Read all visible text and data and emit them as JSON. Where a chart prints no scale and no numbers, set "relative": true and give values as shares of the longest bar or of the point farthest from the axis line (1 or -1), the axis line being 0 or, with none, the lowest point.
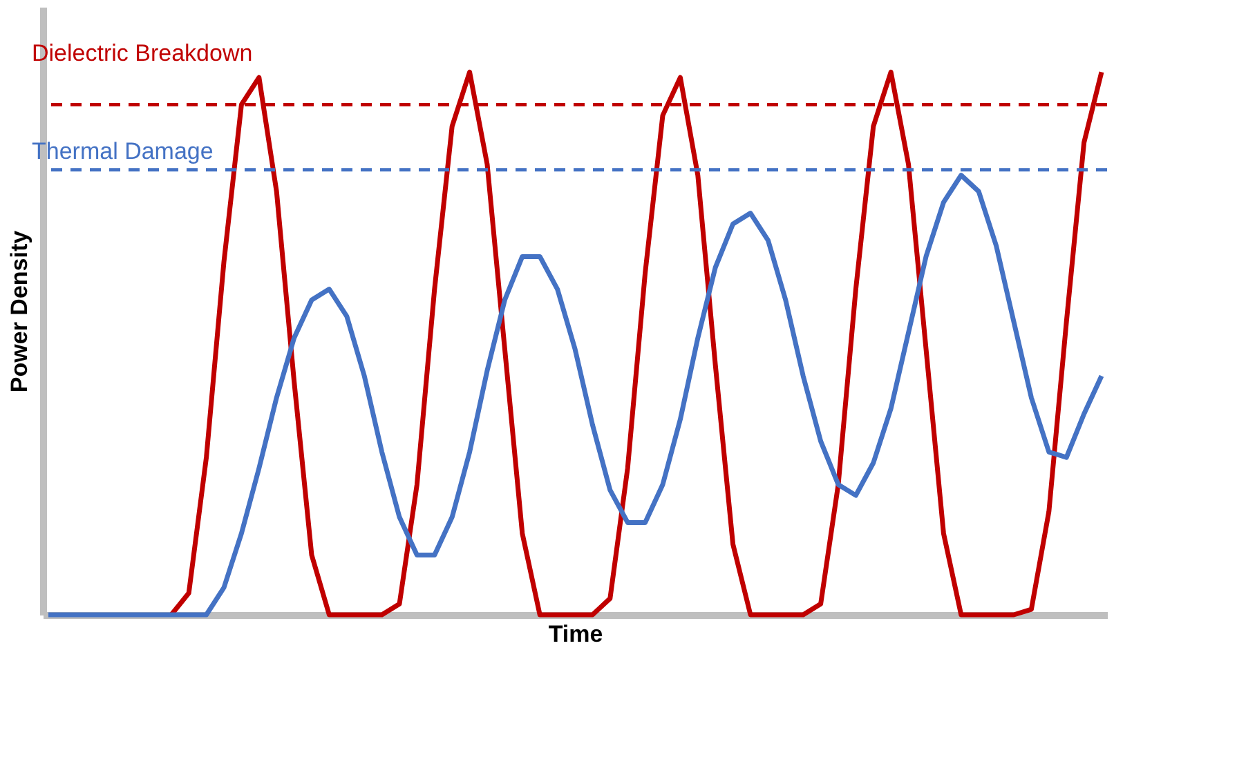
{
  "chart_data": {
    "type": "line",
    "relative": true,
    "xlabel": "Time",
    "ylabel": "Power Density",
    "categories": [
      null,
      null,
      null,
      null,
      null,
      null,
      null,
      null,
      null,
      null,
      null,
      null,
      null,
      null,
      null,
      null,
      null,
      null,
      null,
      null,
      null,
      null,
      null,
      null,
      null,
      null,
      null,
      null,
      null,
      null,
      null,
      null,
      null,
      null,
      null,
      null,
      null,
      null,
      null,
      null,
      null,
      null,
      null,
      null,
      null,
      null,
      null,
      null,
      null,
      null,
      null,
      null,
      null,
      null,
      null,
      null,
      null,
      null,
      null,
      null,
      null
    ],
    "series": [
      {
        "color": "#4472c4",
        "values": [
          0,
          0,
          0,
          0,
          0,
          0,
          0,
          0,
          0,
          0.0,
          0.05,
          0.15,
          0.27,
          0.4,
          0.51,
          0.58,
          0.6,
          0.55,
          0.44,
          0.3,
          0.18,
          0.11,
          0.11,
          0.18,
          0.3,
          0.45,
          0.58,
          0.66,
          0.66,
          0.6,
          0.49,
          0.35,
          0.23,
          0.17,
          0.17,
          0.24,
          0.36,
          0.51,
          0.64,
          0.72,
          0.74,
          0.69,
          0.58,
          0.44,
          0.32,
          0.24,
          0.22,
          0.28,
          0.38,
          0.52,
          0.66,
          0.76,
          0.81,
          0.78,
          0.68,
          0.54,
          0.4,
          0.3,
          0.29,
          0.37,
          0.44
        ]
      },
      {
        "color": "#c00000",
        "values": [
          null,
          null,
          null,
          null,
          null,
          null,
          null,
          0,
          0.04,
          0.29,
          0.65,
          0.94,
          0.99,
          0.78,
          0.43,
          0.11,
          0,
          0,
          0,
          0,
          0.02,
          0.24,
          0.6,
          0.9,
          1.0,
          0.83,
          0.49,
          0.15,
          0,
          0,
          0,
          0,
          0.03,
          0.27,
          0.63,
          0.92,
          0.99,
          0.81,
          0.46,
          0.13,
          0,
          0,
          0,
          0,
          0.02,
          0.24,
          0.6,
          0.9,
          1.0,
          0.83,
          0.49,
          0.15,
          0,
          0,
          0,
          0,
          0.01,
          0.19,
          0.54,
          0.87,
          1.0
        ]
      }
    ],
    "ref_lines": [
      {
        "axis": "y",
        "value": 0.94,
        "label": "Dielectric Breakdown",
        "color": "#c00000",
        "line_style": "dashed"
      },
      {
        "axis": "y",
        "value": 0.82,
        "label": "Thermal Damage",
        "color": "#4472c4",
        "line_style": "dashed"
      }
    ],
    "tick_labels": false,
    "grid": false,
    "marker": "none",
    "line_style": "solid"
  }
}
